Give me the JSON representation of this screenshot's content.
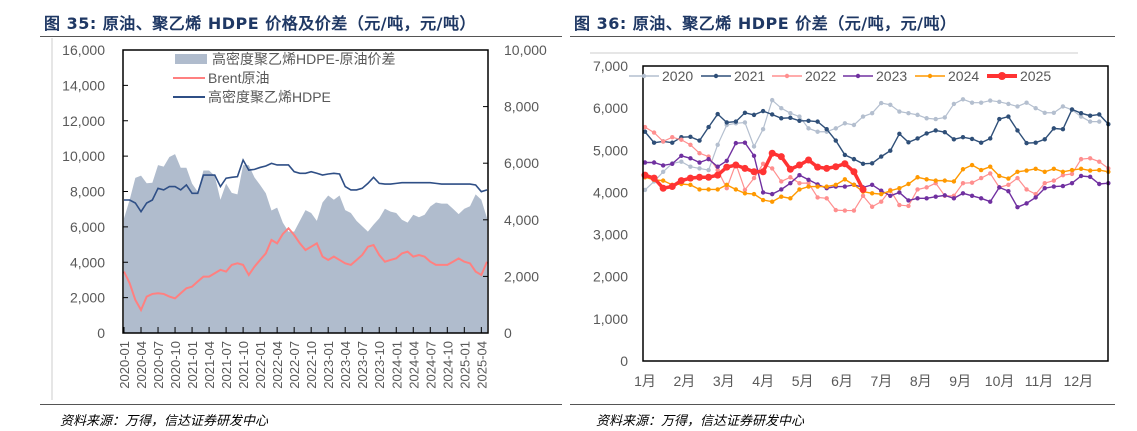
{
  "left": {
    "title": "图 35: 原油、聚乙烯 HDPE 价格及价差（元/吨，元/吨）",
    "source": "资料来源：万得，信达证券研发中心"
  },
  "right": {
    "title": "图 36: 原油、聚乙烯 HDPE 价差（元/吨，元/吨）",
    "source": "资料来源：万得，信达证券研发中心"
  },
  "chart_data": [
    {
      "type": "line",
      "subtype": "line+area, dual axis",
      "ylim": [
        0,
        16000
      ],
      "y2lim": [
        0,
        10000
      ],
      "yticks": [
        "0",
        "2,000",
        "4,000",
        "6,000",
        "8,000",
        "10,000",
        "12,000",
        "14,000",
        "16,000"
      ],
      "y2ticks": [
        "0",
        "2,000",
        "4,000",
        "6,000",
        "8,000",
        "10,000"
      ],
      "xticks": [
        "2020-01",
        "2020-04",
        "2020-07",
        "2020-10",
        "2021-01",
        "2021-04",
        "2021-07",
        "2021-10",
        "2022-01",
        "2022-04",
        "2022-07",
        "2022-10",
        "2023-01",
        "2023-04",
        "2023-07",
        "2023-10",
        "2024-01",
        "2024-04",
        "2024-07",
        "2024-10",
        "2025-01",
        "2025-04"
      ],
      "x_start": "2020-01",
      "legend_position": "top",
      "series": [
        {
          "name": "高密度聚乙烯HDPE-原油价差",
          "axis": "right",
          "kind": "area",
          "color": "#b0bccd",
          "derived": "HDPE minus Brent"
        },
        {
          "name": "Brent原油",
          "axis": "left",
          "kind": "line",
          "color": "#ff8080",
          "values": [
            3470,
            2810,
            1870,
            1300,
            2060,
            2210,
            2250,
            2210,
            2060,
            1960,
            2250,
            2530,
            2620,
            2910,
            3190,
            3190,
            3380,
            3570,
            3470,
            3850,
            3940,
            3850,
            3280,
            3750,
            4130,
            4500,
            5260,
            5070,
            5600,
            5920,
            5540,
            5070,
            4690,
            4880,
            5070,
            4320,
            4130,
            4320,
            4130,
            3940,
            3850,
            4130,
            4410,
            4880,
            4970,
            4410,
            4030,
            4130,
            4220,
            4500,
            4600,
            4320,
            4410,
            4320,
            4030,
            3850,
            3850,
            3850,
            4030,
            4220,
            4030,
            3940,
            3470,
            3280,
            4030
          ]
        },
        {
          "name": "高密度聚乙烯HDPE",
          "axis": "left",
          "kind": "line",
          "color": "#2f4f86",
          "values": [
            7520,
            7520,
            7350,
            6860,
            7350,
            7520,
            8180,
            8090,
            8280,
            8280,
            8090,
            8370,
            7900,
            7900,
            8930,
            8930,
            8930,
            8280,
            8750,
            8800,
            8840,
            9780,
            9210,
            9250,
            9360,
            9440,
            9590,
            9500,
            9500,
            9500,
            9120,
            9030,
            9030,
            9120,
            9030,
            8930,
            8990,
            9030,
            8990,
            8280,
            8090,
            8090,
            8180,
            8460,
            8800,
            8460,
            8420,
            8420,
            8460,
            8500,
            8500,
            8500,
            8500,
            8500,
            8500,
            8460,
            8420,
            8420,
            8420,
            8420,
            8420,
            8420,
            8370,
            7990,
            8090
          ]
        }
      ]
    },
    {
      "type": "line",
      "ylim": [
        0,
        7000
      ],
      "yticks": [
        "0",
        "1,000",
        "2,000",
        "3,000",
        "4,000",
        "5,000",
        "6,000",
        "7,000"
      ],
      "xticks": [
        "1月",
        "2月",
        "3月",
        "4月",
        "5月",
        "6月",
        "7月",
        "8月",
        "9月",
        "10月",
        "11月",
        "12月"
      ],
      "x_unit": "week",
      "legend_position": "top",
      "series": [
        {
          "name": "2020",
          "color": "#b4bfcf",
          "values": [
            4060,
            4260,
            4490,
            4690,
            4730,
            4610,
            4570,
            4530,
            5130,
            5600,
            5640,
            5660,
            5090,
            5500,
            6190,
            6000,
            5880,
            5800,
            5520,
            5440,
            5440,
            5520,
            5640,
            5600,
            5800,
            5880,
            6120,
            6080,
            5920,
            5880,
            5840,
            5760,
            5740,
            5780,
            6100,
            6210,
            6130,
            6130,
            6180,
            6150,
            6100,
            6040,
            6130,
            6000,
            5890,
            5890,
            6040,
            5960,
            5800,
            5680,
            5680
          ]
        },
        {
          "name": "2021",
          "color": "#2f4f78",
          "values": [
            5440,
            5180,
            5210,
            5180,
            5310,
            5320,
            5230,
            5550,
            5860,
            5660,
            5680,
            5890,
            5840,
            5930,
            5850,
            5760,
            5770,
            5700,
            5700,
            5680,
            5500,
            5230,
            4890,
            4790,
            4680,
            4690,
            4850,
            4990,
            5390,
            5190,
            5280,
            5400,
            5470,
            5430,
            5260,
            5310,
            5270,
            5180,
            5280,
            5740,
            5800,
            5470,
            5170,
            5180,
            5260,
            5520,
            5500,
            5970,
            5880,
            5820,
            5850,
            5620
          ]
        },
        {
          "name": "2022",
          "color": "#ff8f8f",
          "values": [
            5550,
            5420,
            5210,
            5310,
            5250,
            5130,
            4930,
            4850,
            4530,
            4100,
            4680,
            4060,
            4340,
            4680,
            4570,
            4260,
            4360,
            4220,
            4220,
            3880,
            3860,
            3580,
            3570,
            3570,
            3920,
            3660,
            3780,
            4060,
            3700,
            3680,
            4070,
            4120,
            4220,
            3920,
            3920,
            4220,
            4230,
            4340,
            4450,
            4120,
            4180,
            4340,
            4070,
            3960,
            4220,
            4280,
            4410,
            4440,
            4790,
            4810,
            4730,
            4570
          ]
        },
        {
          "name": "2023",
          "color": "#7030a0",
          "values": [
            4710,
            4710,
            4640,
            4680,
            4870,
            4810,
            4710,
            4790,
            4610,
            4750,
            5170,
            5180,
            4870,
            4000,
            3960,
            4070,
            4220,
            4410,
            4300,
            4190,
            4100,
            4140,
            4140,
            4180,
            4120,
            4180,
            4040,
            3920,
            4000,
            3810,
            3860,
            3860,
            3900,
            3930,
            3860,
            3980,
            3920,
            3860,
            3780,
            4120,
            4030,
            3650,
            3740,
            3880,
            4100,
            4140,
            4150,
            4220,
            4390,
            4370,
            4200,
            4220
          ]
        },
        {
          "name": "2024",
          "color": "#ff9900",
          "values": [
            4360,
            4300,
            4280,
            4180,
            4200,
            4180,
            4070,
            4070,
            4070,
            4180,
            4070,
            3980,
            3960,
            3820,
            3780,
            3900,
            3860,
            4070,
            4140,
            4140,
            4140,
            4180,
            4310,
            4180,
            4020,
            3980,
            3960,
            4040,
            4100,
            4200,
            4360,
            4310,
            4280,
            4280,
            4260,
            4550,
            4650,
            4530,
            4610,
            4390,
            4330,
            4490,
            4520,
            4560,
            4490,
            4560,
            4490,
            4530,
            4560,
            4520,
            4530,
            4490
          ]
        },
        {
          "name": "2025",
          "color": "#ff3333",
          "values": [
            4410,
            4340,
            4100,
            4140,
            4280,
            4340,
            4360,
            4360,
            4410,
            4600,
            4650,
            4570,
            4490,
            4490,
            4930,
            4850,
            4550,
            4650,
            4770,
            4600,
            4570,
            4610,
            4680,
            4490,
            4070
          ]
        }
      ]
    }
  ]
}
